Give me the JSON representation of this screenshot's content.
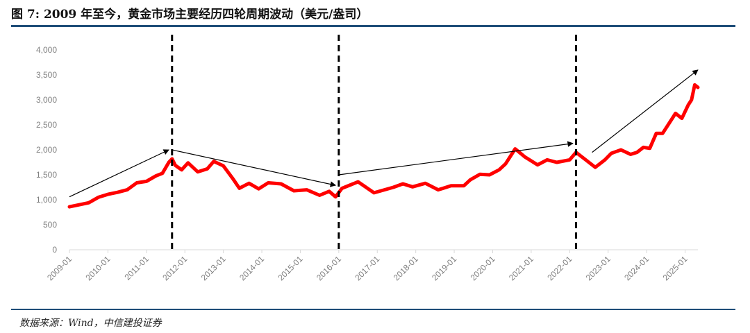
{
  "header": {
    "title": "图 7: 2009 年至今，黄金市场主要经历四轮周期波动（美元/盎司）"
  },
  "footer": {
    "source": "数据来源：Wind，中信建投证券"
  },
  "chart_data": {
    "type": "line",
    "title": "图 7: 2009 年至今，黄金市场主要经历四轮周期波动（美元/盎司）",
    "xlabel": "",
    "ylabel": "",
    "ylim": [
      0,
      4000
    ],
    "yticks": [
      "0",
      "500",
      "1,000",
      "1,500",
      "2,000",
      "2,500",
      "3,000",
      "3,500",
      "4,000"
    ],
    "xticks": [
      "2009-01",
      "2010-01",
      "2011-01",
      "2012-01",
      "2013-01",
      "2014-01",
      "2015-01",
      "2016-01",
      "2017-01",
      "2018-01",
      "2019-01",
      "2020-01",
      "2021-01",
      "2022-01",
      "2023-01",
      "2024-01",
      "2025-01"
    ],
    "xlim": [
      "2009-01",
      "2025-05"
    ],
    "series": [
      {
        "color": "#ff0000",
        "x": [
          "2009-01",
          "2009-04",
          "2009-07",
          "2009-10",
          "2010-01",
          "2010-04",
          "2010-07",
          "2010-10",
          "2011-01",
          "2011-04",
          "2011-06",
          "2011-08",
          "2011-09",
          "2011-10",
          "2011-12",
          "2012-02",
          "2012-05",
          "2012-08",
          "2012-10",
          "2013-01",
          "2013-04",
          "2013-06",
          "2013-09",
          "2013-12",
          "2014-03",
          "2014-07",
          "2014-11",
          "2015-03",
          "2015-07",
          "2015-10",
          "2015-12",
          "2016-02",
          "2016-07",
          "2016-12",
          "2017-06",
          "2017-09",
          "2017-12",
          "2018-04",
          "2018-08",
          "2018-12",
          "2019-04",
          "2019-06",
          "2019-09",
          "2019-12",
          "2020-03",
          "2020-05",
          "2020-08",
          "2020-11",
          "2021-03",
          "2021-06",
          "2021-09",
          "2022-01",
          "2022-03",
          "2022-05",
          "2022-09",
          "2022-12",
          "2023-02",
          "2023-05",
          "2023-08",
          "2023-10",
          "2023-12",
          "2024-02",
          "2024-04",
          "2024-06",
          "2024-09",
          "2024-10",
          "2024-12",
          "2025-02",
          "2025-03",
          "2025-04",
          "2025-05"
        ],
        "y": [
          860,
          900,
          940,
          1050,
          1110,
          1150,
          1200,
          1340,
          1370,
          1480,
          1530,
          1750,
          1820,
          1690,
          1600,
          1740,
          1560,
          1620,
          1770,
          1680,
          1420,
          1230,
          1330,
          1220,
          1340,
          1320,
          1180,
          1200,
          1090,
          1170,
          1060,
          1230,
          1360,
          1140,
          1250,
          1320,
          1260,
          1330,
          1200,
          1280,
          1280,
          1400,
          1510,
          1500,
          1600,
          1720,
          2020,
          1860,
          1700,
          1800,
          1750,
          1800,
          1950,
          1850,
          1650,
          1800,
          1930,
          2000,
          1910,
          1950,
          2050,
          2030,
          2330,
          2330,
          2630,
          2730,
          2630,
          2900,
          3000,
          3300,
          3250
        ]
      }
    ],
    "cycle_boundaries": [
      "2011-09",
      "2016-01",
      "2022-03"
    ],
    "trend_arrows": [
      {
        "from": [
          "2009-01",
          1060
        ],
        "to": [
          "2011-08",
          2000
        ]
      },
      {
        "from": [
          "2011-09",
          2000
        ],
        "to": [
          "2015-12",
          1290
        ]
      },
      {
        "from": [
          "2016-01",
          1500
        ],
        "to": [
          "2022-02",
          2130
        ]
      },
      {
        "from": [
          "2022-08",
          1950
        ],
        "to": [
          "2025-05",
          3600
        ]
      }
    ]
  }
}
